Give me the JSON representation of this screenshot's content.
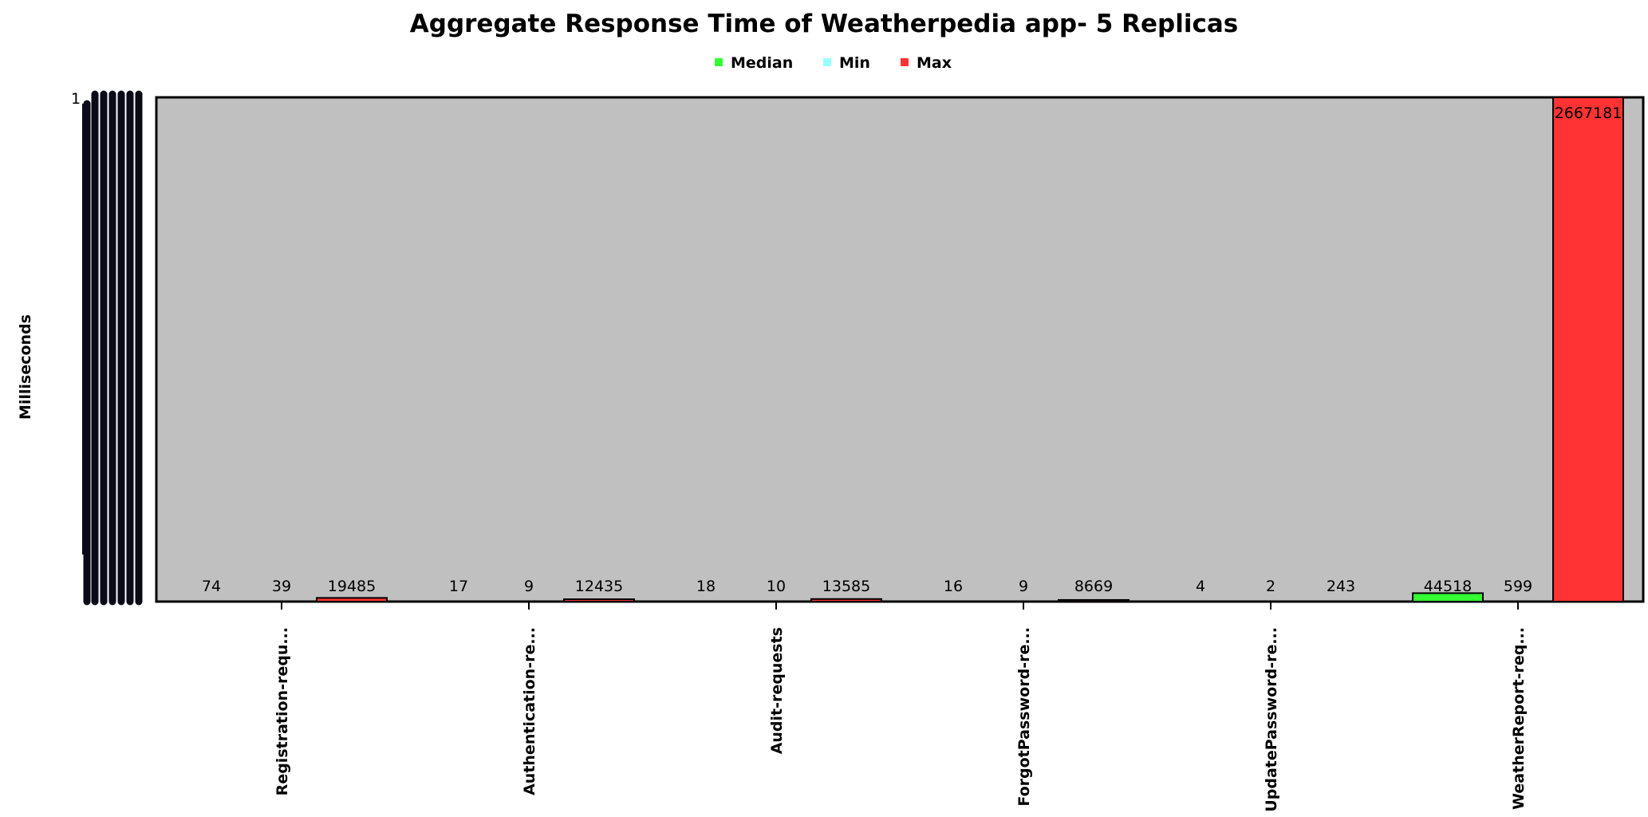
{
  "chart_data": {
    "type": "bar",
    "title": "Aggregate Response Time of Weatherpedia app- 5 Replicas",
    "xlabel": "",
    "ylabel": "Milliseconds",
    "y_top_tick": "1",
    "categories": [
      "Registration-requ...",
      "Authentication-re...",
      "Audit-requests",
      "ForgotPassword-re...",
      "UpdatePassword-re...",
      "WeatherReport-req..."
    ],
    "series": [
      {
        "name": "Median",
        "values": [
          74,
          17,
          18,
          16,
          4,
          44518
        ]
      },
      {
        "name": "Min",
        "values": [
          39,
          9,
          10,
          9,
          2,
          599
        ]
      },
      {
        "name": "Max",
        "values": [
          19485,
          12435,
          13585,
          8669,
          243,
          2667181
        ]
      }
    ],
    "ylim": [
      0,
      2667181
    ],
    "legend_position": "top-center",
    "grid": false,
    "colors": {
      "Median": "#33ff33",
      "Min": "#99ffff",
      "Max": "#ff3333",
      "plot_background": "#c0c0c0"
    }
  }
}
